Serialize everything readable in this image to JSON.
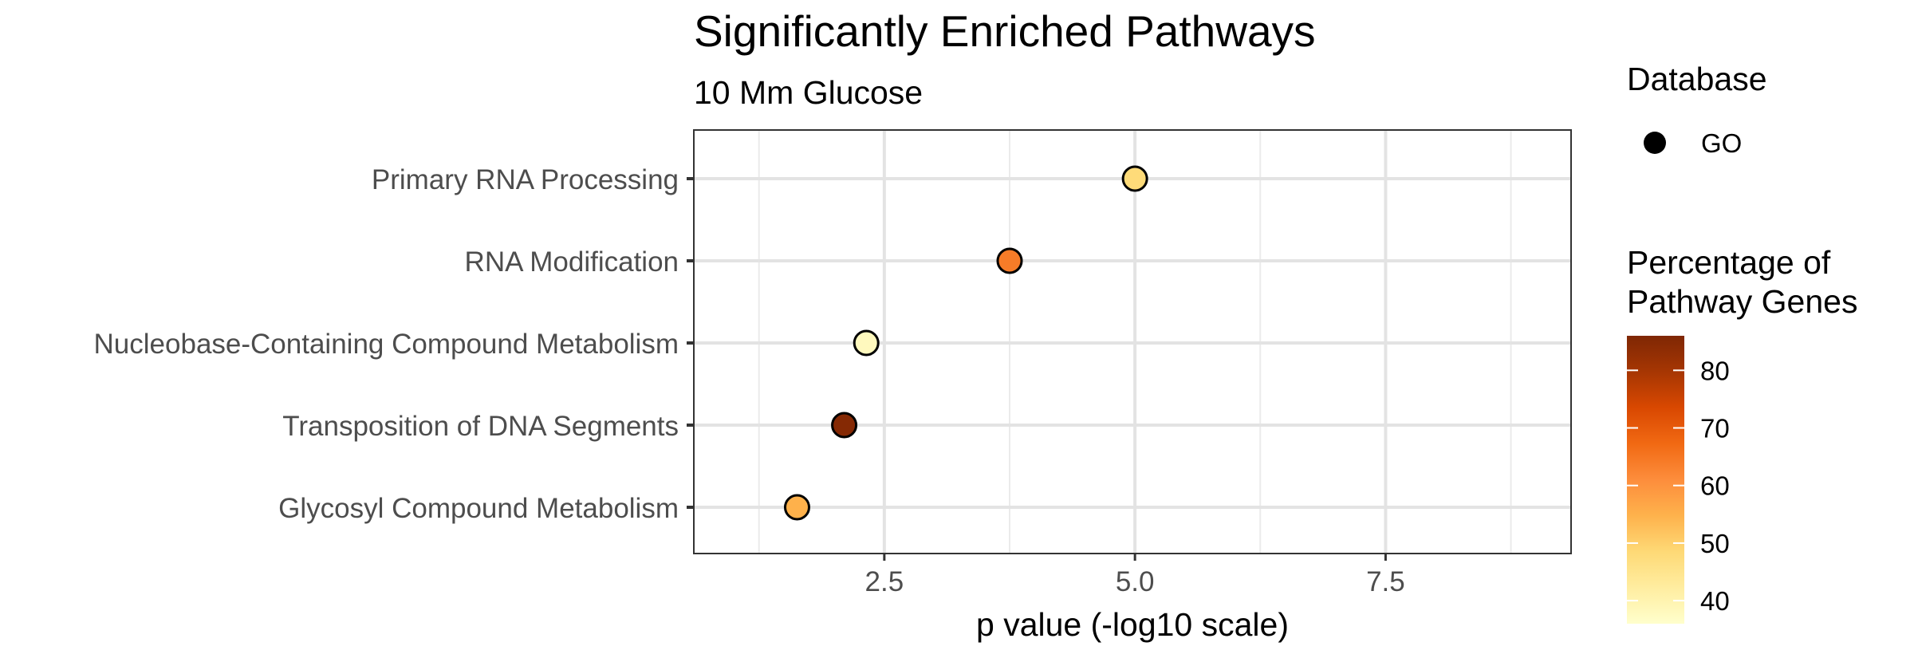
{
  "chart_data": {
    "type": "scatter",
    "title": "Significantly Enriched Pathways",
    "subtitle": "10 Mm Glucose",
    "xlabel": "p value (-log10 scale)",
    "ylabel": "",
    "xlim": [
      0.6,
      9.35
    ],
    "x_ticks": [
      2.5,
      5.0,
      7.5
    ],
    "x_tick_labels": [
      "2.5",
      "5.0",
      "7.5"
    ],
    "x_minor_ticks": [
      1.25,
      3.75,
      6.25,
      8.75
    ],
    "grid": true,
    "categories": [
      "Primary RNA Processing",
      "RNA Modification",
      "Nucleobase-Containing Compound Metabolism",
      "Transposition of DNA Segments",
      "Glycosyl Compound Metabolism"
    ],
    "points": [
      {
        "category": "Primary RNA Processing",
        "x": 5.0,
        "percentage": 48,
        "database": "GO"
      },
      {
        "category": "RNA Modification",
        "x": 3.75,
        "percentage": 64,
        "database": "GO"
      },
      {
        "category": "Nucleobase-Containing Compound Metabolism",
        "x": 2.32,
        "percentage": 38,
        "database": "GO"
      },
      {
        "category": "Transposition of DNA Segments",
        "x": 2.1,
        "percentage": 85,
        "database": "GO"
      },
      {
        "category": "Glycosyl Compound Metabolism",
        "x": 1.63,
        "percentage": 55,
        "database": "GO"
      }
    ],
    "legend_shape": {
      "title": "Database",
      "entries": [
        {
          "label": "GO",
          "shape": "circle",
          "color": "#000000"
        }
      ]
    },
    "legend_color": {
      "title_lines": [
        "Percentage of",
        "Pathway Genes"
      ],
      "range": [
        36,
        86
      ],
      "ticks": [
        40,
        50,
        60,
        70,
        80
      ],
      "tick_labels": [
        "40",
        "50",
        "60",
        "70",
        "80"
      ],
      "colors": [
        "#FFFFCC",
        "#FFEDA0",
        "#FED976",
        "#FEB24C",
        "#FD8D3C",
        "#F16913",
        "#D94801",
        "#A63603",
        "#7F2704"
      ]
    },
    "legend_position": "right"
  }
}
